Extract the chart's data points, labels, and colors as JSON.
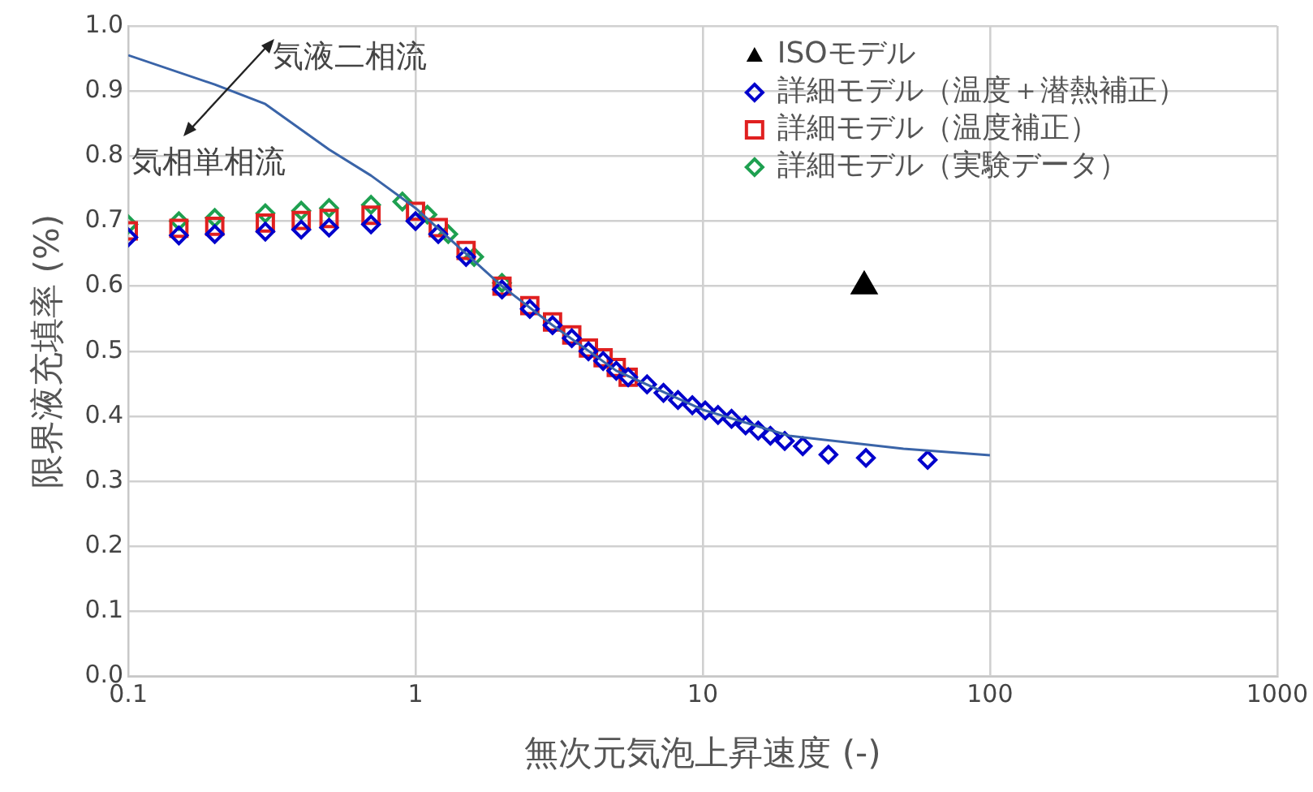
{
  "chart_data": {
    "type": "scatter",
    "xlabel": "無次元気泡上昇速度 (-)",
    "ylabel": "限界液充填率 (%)",
    "log": "x",
    "xlim": [
      0.1,
      1000
    ],
    "xticks": [
      0.1,
      1,
      10,
      100,
      1000
    ],
    "ylim": [
      0,
      1
    ],
    "yticks": [
      {
        "value": 0,
        "label": "0.0"
      },
      0.1,
      0.2,
      0.3,
      0.4,
      0.5,
      0.6,
      0.7,
      0.8,
      0.9,
      {
        "value": 1,
        "label": "1.0"
      }
    ],
    "grid": true,
    "legend": "top right",
    "annotations": [
      "気液二相流",
      "気相単相流"
    ],
    "series": [
      {
        "type": "line",
        "color": "#3a64a8",
        "marker": "none",
        "x": [
          0.1,
          0.2,
          0.3,
          0.5,
          0.7,
          1,
          2,
          3,
          5,
          10,
          20,
          50,
          100
        ],
        "values": [
          0.955,
          0.91,
          0.88,
          0.81,
          0.77,
          0.72,
          0.6,
          0.54,
          0.47,
          0.41,
          0.37,
          0.35,
          0.34
        ]
      },
      {
        "name": "ISOモデル",
        "color": "#000000",
        "marker": "triangle",
        "x": [
          36.5
        ],
        "values": [
          0.6
        ]
      },
      {
        "name": "詳細モデル（温度＋潜熱補正）",
        "color": "#0000cc",
        "marker": "diamond",
        "x": [
          0.1,
          0.15,
          0.2,
          0.3,
          0.4,
          0.5,
          0.7,
          1,
          1.2,
          1.5,
          2,
          2.5,
          3,
          3.5,
          4,
          4.5,
          5,
          5.5,
          6.4,
          7.3,
          8.2,
          9.2,
          10.2,
          11.3,
          12.6,
          14.1,
          15.6,
          17.2,
          19.3,
          22.3,
          27.4,
          37,
          60.7
        ],
        "values": [
          0.675,
          0.678,
          0.68,
          0.684,
          0.687,
          0.69,
          0.695,
          0.7,
          0.68,
          0.645,
          0.595,
          0.565,
          0.54,
          0.52,
          0.5,
          0.485,
          0.47,
          0.46,
          0.449,
          0.436,
          0.425,
          0.417,
          0.409,
          0.402,
          0.396,
          0.386,
          0.378,
          0.37,
          0.362,
          0.354,
          0.341,
          0.336,
          0.333
        ]
      },
      {
        "name": "詳細モデル（温度補正）",
        "color": "#e02020",
        "marker": "square",
        "x": [
          0.1,
          0.15,
          0.2,
          0.3,
          0.4,
          0.5,
          0.7,
          1,
          1.2,
          1.5,
          2,
          2.5,
          3,
          3.5,
          4,
          4.5,
          5,
          5.5
        ],
        "values": [
          0.685,
          0.689,
          0.692,
          0.697,
          0.701,
          0.704,
          0.709,
          0.715,
          0.69,
          0.655,
          0.6,
          0.57,
          0.545,
          0.525,
          0.505,
          0.49,
          0.475,
          0.46
        ]
      },
      {
        "name": "詳細モデル（実験データ）",
        "color": "#1ea050",
        "marker": "diamond",
        "x": [
          0.1,
          0.15,
          0.2,
          0.3,
          0.4,
          0.5,
          0.7,
          0.9,
          1.1,
          1.3,
          1.6,
          2
        ],
        "values": [
          0.695,
          0.7,
          0.705,
          0.712,
          0.716,
          0.72,
          0.725,
          0.73,
          0.71,
          0.68,
          0.645,
          0.605
        ]
      }
    ]
  }
}
